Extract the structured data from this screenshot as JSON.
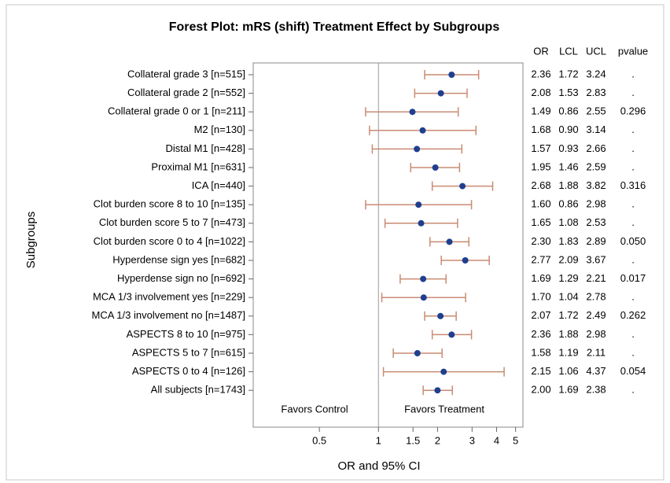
{
  "chart_data": {
    "type": "forest",
    "title": "Forest Plot: mRS (shift) Treatment Effect by Subgroups",
    "x_label": "OR and 95% CI",
    "y_label": "Subgroups",
    "annotations": [
      "Favors Control",
      "Favors Treatment"
    ],
    "xscale": "log",
    "xlim": [
      0.23,
      5.45
    ],
    "xticks": [
      0.5,
      1,
      1.5,
      2,
      3,
      4,
      5
    ],
    "reference_line": 1,
    "marker_color": "#1f3f8f",
    "ci_color": "#c98b73",
    "categories": [
      "Collateral grade 3 [n=515]",
      "Collateral grade 2 [n=552]",
      "Collateral grade 0 or 1 [n=211]",
      "M2 [n=130]",
      "Distal M1 [n=428]",
      "Proximal M1 [n=631]",
      "ICA [n=440]",
      "Clot burden score 8 to 10 [n=135]",
      "Clot burden score 5 to 7 [n=473]",
      "Clot burden score 0 to 4 [n=1022]",
      "Hyperdense sign yes [n=682]",
      "Hyperdense sign no [n=692]",
      "MCA 1/3 involvement yes [n=229]",
      "MCA 1/3 involvement no [n=1487]",
      "ASPECTS 8 to 10 [n=975]",
      "ASPECTS 5 to 7 [n=615]",
      "ASPECTS 0 to 4 [n=126]",
      "All subjects [n=1743]"
    ],
    "series": [
      {
        "name": "OR",
        "values": [
          2.36,
          2.08,
          1.49,
          1.68,
          1.57,
          1.95,
          2.68,
          1.6,
          1.65,
          2.3,
          2.77,
          1.69,
          1.7,
          2.07,
          2.36,
          1.58,
          2.15,
          2
        ],
        "value_labels": [
          "2.36",
          "2.08",
          "1.49",
          "1.68",
          "1.57",
          "1.95",
          "2.68",
          "1.60",
          "1.65",
          "2.30",
          "2.77",
          "1.69",
          "1.70",
          "2.07",
          "2.36",
          "1.58",
          "2.15",
          "2.00"
        ]
      },
      {
        "name": "LCL",
        "values": [
          1.72,
          1.53,
          0.86,
          0.9,
          0.93,
          1.46,
          1.88,
          0.86,
          1.08,
          1.83,
          2.09,
          1.29,
          1.04,
          1.72,
          1.88,
          1.19,
          1.06,
          1.69
        ],
        "value_labels": [
          "1.72",
          "1.53",
          "0.86",
          "0.90",
          "0.93",
          "1.46",
          "1.88",
          "0.86",
          "1.08",
          "1.83",
          "2.09",
          "1.29",
          "1.04",
          "1.72",
          "1.88",
          "1.19",
          "1.06",
          "1.69"
        ]
      },
      {
        "name": "UCL",
        "values": [
          3.24,
          2.83,
          2.55,
          3.14,
          2.66,
          2.59,
          3.82,
          2.98,
          2.53,
          2.89,
          3.67,
          2.21,
          2.78,
          2.49,
          2.98,
          2.11,
          4.37,
          2.38
        ],
        "value_labels": [
          "3.24",
          "2.83",
          "2.55",
          "3.14",
          "2.66",
          "2.59",
          "3.82",
          "2.98",
          "2.53",
          "2.89",
          "3.67",
          "2.21",
          "2.78",
          "2.49",
          "2.98",
          "2.11",
          "4.37",
          "2.38"
        ]
      },
      {
        "name": "pvalue",
        "values": [
          null,
          null,
          0.296,
          null,
          null,
          null,
          0.316,
          null,
          null,
          0.05,
          null,
          0.017,
          null,
          0.262,
          null,
          null,
          0.054,
          null
        ],
        "value_labels": [
          ".",
          ".",
          "0.296",
          ".",
          ".",
          ".",
          "0.316",
          ".",
          ".",
          "0.050",
          ".",
          "0.017",
          ".",
          "0.262",
          ".",
          ".",
          "0.054",
          "."
        ]
      }
    ]
  }
}
